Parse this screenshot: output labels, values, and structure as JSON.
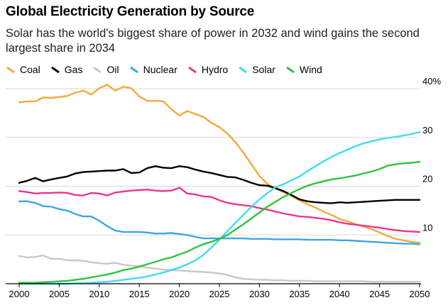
{
  "header": {
    "title": "Global Electricity Generation by Source",
    "subtitle": "Solar has the world's biggest share of power in 2032 and wind gains the second largest share in 2034"
  },
  "chart_data": {
    "type": "line",
    "title": "Global Electricity Generation by Source",
    "subtitle": "Solar has the world's biggest share of power in 2032 and wind gains the second largest share in 2034",
    "xlim": [
      2000,
      2050
    ],
    "ylim": [
      0,
      40
    ],
    "x_ticks": [
      2000,
      2005,
      2010,
      2015,
      2020,
      2025,
      2030,
      2035,
      2040,
      2045,
      2050
    ],
    "y_ticks": [
      10,
      20,
      30,
      40
    ],
    "y_tick_labels": [
      "10",
      "20",
      "30",
      "40%"
    ],
    "grid": "horizontal",
    "legend_position": "top-left",
    "x": [
      2000,
      2001,
      2002,
      2003,
      2004,
      2005,
      2006,
      2007,
      2008,
      2009,
      2010,
      2011,
      2012,
      2013,
      2014,
      2015,
      2016,
      2017,
      2018,
      2019,
      2020,
      2021,
      2022,
      2023,
      2024,
      2025,
      2026,
      2027,
      2028,
      2029,
      2030,
      2031,
      2032,
      2033,
      2034,
      2035,
      2036,
      2037,
      2038,
      2039,
      2040,
      2041,
      2042,
      2043,
      2044,
      2045,
      2046,
      2047,
      2048,
      2049,
      2050
    ],
    "series": [
      {
        "name": "Coal",
        "color": "#f4a93b",
        "values": [
          37.2,
          37.4,
          37.4,
          38.2,
          38.1,
          38.3,
          38.5,
          39.2,
          39.6,
          38.8,
          40.1,
          40.8,
          39.6,
          40.4,
          40.1,
          38.4,
          37.5,
          37.5,
          37.4,
          35.8,
          34.5,
          35.4,
          34.8,
          34.2,
          33.0,
          32.1,
          30.8,
          29.0,
          26.9,
          24.5,
          22.1,
          20.5,
          19.5,
          18.8,
          18.0,
          17.1,
          16.3,
          15.6,
          14.8,
          14.1,
          13.3,
          12.8,
          12.2,
          11.7,
          11.2,
          10.5,
          9.8,
          9.2,
          8.9,
          8.6,
          8.4
        ]
      },
      {
        "name": "Gas",
        "color": "#000000",
        "values": [
          20.7,
          21.1,
          21.7,
          21.0,
          21.4,
          21.7,
          22.0,
          22.6,
          22.9,
          23.0,
          23.1,
          23.2,
          23.2,
          23.5,
          22.7,
          22.8,
          23.7,
          24.1,
          23.8,
          23.7,
          24.1,
          23.9,
          23.4,
          23.0,
          22.7,
          22.3,
          21.9,
          21.8,
          21.3,
          20.7,
          20.2,
          20.1,
          19.6,
          19.0,
          18.2,
          17.3,
          16.9,
          16.7,
          16.6,
          16.5,
          16.7,
          16.6,
          16.7,
          16.8,
          16.9,
          17.0,
          17.1,
          17.2,
          17.2,
          17.2,
          17.2
        ]
      },
      {
        "name": "Oil",
        "color": "#c8c8c8",
        "values": [
          5.7,
          5.4,
          5.5,
          5.8,
          5.1,
          5.1,
          4.8,
          4.8,
          4.7,
          4.4,
          4.2,
          4.1,
          4.3,
          3.9,
          3.7,
          3.6,
          3.3,
          3.1,
          2.9,
          2.8,
          2.7,
          2.6,
          2.5,
          2.4,
          2.3,
          2.1,
          1.8,
          1.3,
          1.0,
          0.9,
          0.8,
          0.8,
          0.7,
          0.7,
          0.6,
          0.6,
          0.6,
          0.5,
          0.5,
          0.5,
          0.5,
          0.5,
          0.5,
          0.5,
          0.4,
          0.4,
          0.4,
          0.4,
          0.4,
          0.4,
          0.4
        ]
      },
      {
        "name": "Nuclear",
        "color": "#3ea6e4",
        "values": [
          16.9,
          16.9,
          16.6,
          15.9,
          15.8,
          15.3,
          15.0,
          14.3,
          13.8,
          13.8,
          12.9,
          11.8,
          10.9,
          10.6,
          10.6,
          10.6,
          10.5,
          10.3,
          10.3,
          10.4,
          10.2,
          10.0,
          9.6,
          9.3,
          9.3,
          9.3,
          9.3,
          9.3,
          9.3,
          9.2,
          9.2,
          9.2,
          9.1,
          9.1,
          9.1,
          9.1,
          9.0,
          9.0,
          9.0,
          9.0,
          8.9,
          8.9,
          8.8,
          8.7,
          8.6,
          8.5,
          8.4,
          8.3,
          8.2,
          8.2,
          8.1
        ]
      },
      {
        "name": "Hydro",
        "color": "#e8388c",
        "values": [
          19.0,
          18.8,
          18.5,
          18.6,
          18.6,
          18.7,
          18.6,
          18.2,
          18.1,
          18.6,
          18.5,
          18.1,
          18.7,
          18.9,
          19.1,
          19.2,
          19.3,
          19.1,
          19.0,
          19.1,
          19.7,
          18.5,
          18.3,
          17.9,
          17.8,
          17.1,
          16.6,
          16.3,
          16.1,
          15.9,
          15.5,
          15.2,
          14.8,
          14.4,
          14.1,
          13.8,
          13.7,
          13.5,
          13.3,
          13.0,
          12.6,
          12.3,
          12.1,
          11.9,
          11.7,
          11.5,
          11.2,
          11.0,
          10.8,
          10.7,
          10.6
        ]
      },
      {
        "name": "Solar",
        "color": "#40dcef",
        "values": [
          0.0,
          0.0,
          0.0,
          0.0,
          0.0,
          0.0,
          0.0,
          0.1,
          0.1,
          0.2,
          0.3,
          0.4,
          0.6,
          0.8,
          1.0,
          1.2,
          1.5,
          1.9,
          2.3,
          2.8,
          3.3,
          4.0,
          4.8,
          5.9,
          7.4,
          9.0,
          10.8,
          12.5,
          14.1,
          15.8,
          17.3,
          18.6,
          19.8,
          20.4,
          21.2,
          22.0,
          23.1,
          24.1,
          25.1,
          26.0,
          26.8,
          27.5,
          28.2,
          28.8,
          29.2,
          29.6,
          29.9,
          30.1,
          30.4,
          30.7,
          31.1
        ]
      },
      {
        "name": "Wind",
        "color": "#2ec440",
        "values": [
          0.2,
          0.2,
          0.2,
          0.3,
          0.4,
          0.5,
          0.6,
          0.8,
          1.0,
          1.3,
          1.6,
          1.9,
          2.3,
          2.8,
          3.1,
          3.5,
          4.0,
          4.5,
          5.0,
          5.4,
          6.0,
          6.6,
          7.4,
          8.1,
          8.6,
          9.2,
          10.0,
          11.1,
          12.2,
          13.4,
          14.6,
          15.8,
          16.8,
          17.8,
          18.6,
          19.4,
          20.1,
          20.6,
          21.0,
          21.4,
          21.6,
          21.9,
          22.2,
          22.6,
          23.0,
          23.5,
          24.2,
          24.5,
          24.7,
          24.8,
          25.0
        ]
      }
    ]
  }
}
